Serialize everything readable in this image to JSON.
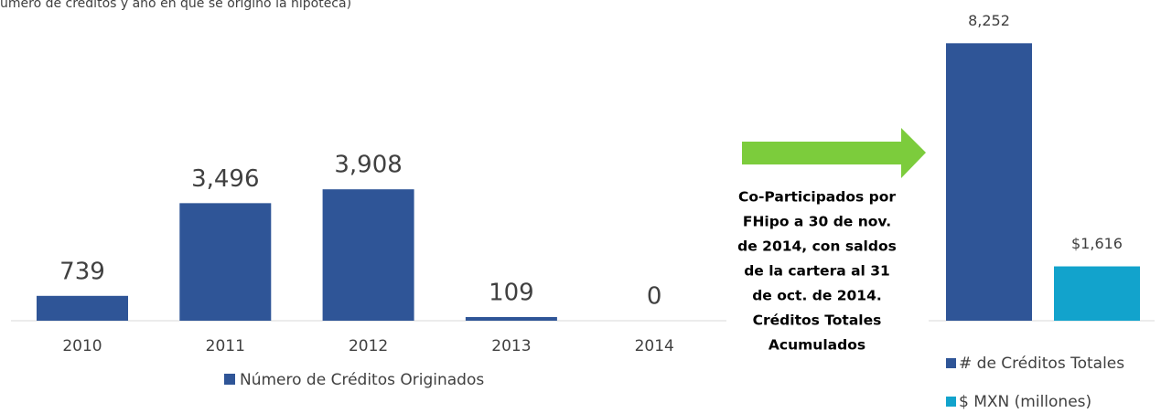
{
  "chart_data": [
    {
      "type": "bar",
      "subtitle": "úmero de créditos y año en que se originó la hipoteca)",
      "categories": [
        "2010",
        "2011",
        "2012",
        "2013",
        "2014"
      ],
      "series": [
        {
          "name": "Número de Créditos Originados",
          "color": "#2f5597",
          "values": [
            739,
            3496,
            3908,
            109,
            0
          ],
          "value_labels": [
            "739",
            "3,496",
            "3,908",
            "109",
            "0"
          ]
        }
      ]
    },
    {
      "type": "bar",
      "annotation": [
        "Co-Participados por",
        "FHipo a 30 de nov.",
        "de 2014, con saldos",
        "de la cartera al 31",
        "de oct. de 2014.",
        "Créditos Totales",
        "Acumulados"
      ],
      "series": [
        {
          "name": "# de Créditos Totales",
          "color": "#2f5597",
          "values": [
            8252
          ],
          "value_labels": [
            "8,252"
          ]
        },
        {
          "name": "$ MXN (millones)",
          "color": "#12a3cc",
          "values": [
            1616
          ],
          "value_labels": [
            "$1,616"
          ]
        }
      ]
    }
  ]
}
